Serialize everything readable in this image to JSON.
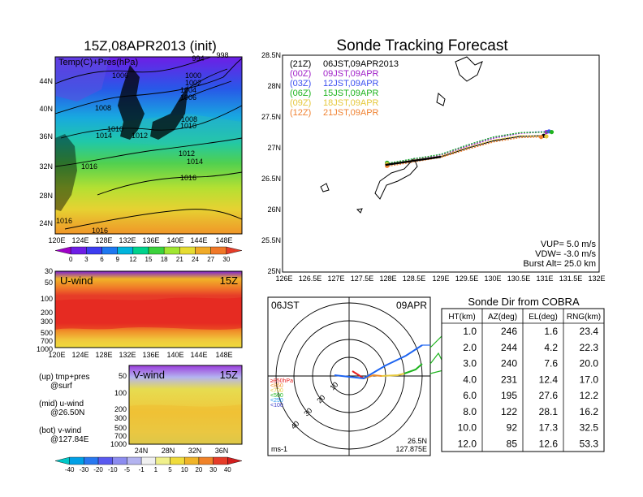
{
  "header": {
    "left_title": "15Z,08APR2013 (init)",
    "right_title": "Sonde Tracking Forecast"
  },
  "map_panel": {
    "overlay_label": "Temp(C)+Pres(hPa)",
    "lat_ticks": [
      "44N",
      "40N",
      "36N",
      "32N",
      "28N",
      "24N"
    ],
    "lon_ticks": [
      "120E",
      "124E",
      "128E",
      "132E",
      "136E",
      "140E",
      "144E",
      "148E"
    ],
    "isobar_labels": [
      "994",
      "998",
      "1006",
      "1000",
      "1002",
      "1004",
      "1006",
      "1008",
      "1008",
      "1010",
      "1010",
      "1012",
      "1014",
      "1012",
      "1014",
      "1016",
      "1016",
      "1016",
      "1016"
    ],
    "colorbar": {
      "labels": [
        "0",
        "3",
        "6",
        "9",
        "12",
        "15",
        "18",
        "21",
        "24",
        "27",
        "30"
      ],
      "colors": [
        "#a000c8",
        "#6e1ee6",
        "#3c3cf0",
        "#1e78f0",
        "#00b4dc",
        "#00d28c",
        "#3cd23c",
        "#a0e632",
        "#e6dc32",
        "#f0aa28",
        "#f07828",
        "#e63c28"
      ]
    }
  },
  "uwind_panel": {
    "label": "U-wind",
    "time": "15Z",
    "y_ticks": [
      "30",
      "50",
      "100",
      "200",
      "300",
      "500",
      "700",
      "1000"
    ],
    "x_ticks": [
      "120E",
      "124E",
      "128E",
      "132E",
      "136E",
      "140E",
      "144E",
      "148E"
    ]
  },
  "vwind_panel": {
    "label": "V-wind",
    "time": "15Z",
    "y_ticks": [
      "50",
      "100",
      "200",
      "300",
      "500",
      "700",
      "1000"
    ],
    "x_ticks": [
      "24N",
      "28N",
      "32N",
      "36N"
    ],
    "colorbar": {
      "labels": [
        "-40",
        "-30",
        "-20",
        "-10",
        "-5",
        "-1",
        "1",
        "5",
        "10",
        "20",
        "30",
        "40"
      ],
      "colors": [
        "#00c8c8",
        "#00a0e6",
        "#2878f0",
        "#5a5af0",
        "#8c8cf0",
        "#b4b4f0",
        "#f0f0f0",
        "#f0f08c",
        "#f0dc3c",
        "#f0b428",
        "#f08228",
        "#e63c28",
        "#d21e1e"
      ]
    }
  },
  "legend_notes": {
    "line1": "(up) tmp+pres",
    "line2": "@surf",
    "line3": "(mid) u-wind",
    "line4": "@26.50N",
    "line5": "(bot) v-wind",
    "line6": "@127.84E"
  },
  "track_panel": {
    "lat_ticks": [
      "28.5N",
      "28N",
      "27.5N",
      "27N",
      "26.5N",
      "26N",
      "25.5N",
      "25N"
    ],
    "lon_ticks": [
      "126E",
      "126.5E",
      "127E",
      "127.5E",
      "128E",
      "128.5E",
      "129E",
      "129.5E",
      "130E",
      "130.5E",
      "131E",
      "131.5E",
      "132E"
    ],
    "legend": [
      {
        "z": "(21Z)",
        "t": "06JST,09APR2013",
        "color": "#000000"
      },
      {
        "z": "(00Z)",
        "t": "09JST,09APR",
        "color": "#a020c8"
      },
      {
        "z": "(03Z)",
        "t": "12JST,09APR",
        "color": "#3c50f0"
      },
      {
        "z": "(06Z)",
        "t": "15JST,09APR",
        "color": "#1eb41e"
      },
      {
        "z": "(09Z)",
        "t": "18JST,09APR",
        "color": "#e6c83c"
      },
      {
        "z": "(12Z)",
        "t": "21JST,09APR",
        "color": "#f08232"
      }
    ],
    "params": {
      "vup": "VUP= 5.0 m/s",
      "vdw": "VDW= -3.0 m/s",
      "burst": "Burst Alt= 25.0 km"
    }
  },
  "polar_panel": {
    "time": "06JST",
    "date": "09APR",
    "units": "ms-1",
    "ring_labels": [
      "10",
      "20",
      "30",
      "40"
    ],
    "pos_lat": "26.5N",
    "pos_lon": "127.875E",
    "levels": [
      {
        "label": "≥850hPa",
        "color": "#e61e1e"
      },
      {
        "label": "<850",
        "color": "#f08c28"
      },
      {
        "label": "<700",
        "color": "#e6c83c"
      },
      {
        "label": "<500",
        "color": "#1eb41e"
      },
      {
        "label": "<250",
        "color": "#1e96f0"
      },
      {
        "label": "<100",
        "color": "#3c3cc8"
      }
    ]
  },
  "chart_data": [
    {
      "type": "table",
      "title": "Sonde Dir from COBRA",
      "columns": [
        "HT(km)",
        "AZ(deg)",
        "EL(deg)",
        "RNG(km)"
      ],
      "rows": [
        [
          "1.0",
          "246",
          "1.6",
          "23.4"
        ],
        [
          "2.0",
          "244",
          "4.2",
          "22.3"
        ],
        [
          "3.0",
          "240",
          "7.6",
          "20.0"
        ],
        [
          "4.0",
          "231",
          "12.4",
          "17.0"
        ],
        [
          "6.0",
          "195",
          "27.6",
          "12.2"
        ],
        [
          "8.0",
          "122",
          "28.1",
          "16.2"
        ],
        [
          "10.0",
          "92",
          "17.3",
          "32.5"
        ],
        [
          "12.0",
          "85",
          "12.6",
          "53.3"
        ]
      ]
    },
    {
      "type": "line",
      "title": "Sonde Tracking Forecast",
      "xlim": [
        126,
        132
      ],
      "ylim": [
        25,
        28.5
      ],
      "series": [
        {
          "name": "(21Z) 06JST,09APR2013",
          "x": [
            127.95,
            128.5,
            129.0,
            129.5,
            130.0,
            130.5,
            130.95
          ],
          "y": [
            26.73,
            26.8,
            26.86,
            27.0,
            27.12,
            27.19,
            27.2
          ]
        },
        {
          "name": "(00Z) 09JST,09APR",
          "x": [
            127.95,
            128.5,
            129.0,
            129.5,
            130.0,
            130.5,
            131.0
          ],
          "y": [
            26.74,
            26.82,
            26.88,
            27.03,
            27.16,
            27.24,
            27.26
          ]
        },
        {
          "name": "(03Z) 12JST,09APR",
          "x": [
            127.95,
            128.5,
            129.0,
            129.5,
            130.0,
            130.5,
            131.05
          ],
          "y": [
            26.75,
            26.83,
            26.9,
            27.05,
            27.18,
            27.25,
            27.27
          ]
        },
        {
          "name": "(06Z) 15JST,09APR",
          "x": [
            127.95,
            128.5,
            129.0,
            129.5,
            130.0,
            130.5,
            131.1
          ],
          "y": [
            26.75,
            26.83,
            26.9,
            27.05,
            27.18,
            27.25,
            27.26
          ]
        },
        {
          "name": "(09Z) 18JST,09APR",
          "x": [
            127.95,
            128.5,
            129.0,
            129.5,
            130.0,
            130.5,
            131.0
          ],
          "y": [
            26.73,
            26.81,
            26.87,
            27.01,
            27.13,
            27.2,
            27.19
          ]
        },
        {
          "name": "(12Z) 21JST,09APR",
          "x": [
            127.95,
            128.5,
            129.0,
            129.5,
            130.0,
            130.5,
            130.9
          ],
          "y": [
            26.7,
            26.78,
            26.85,
            26.98,
            27.1,
            27.17,
            27.18
          ]
        }
      ]
    }
  ]
}
